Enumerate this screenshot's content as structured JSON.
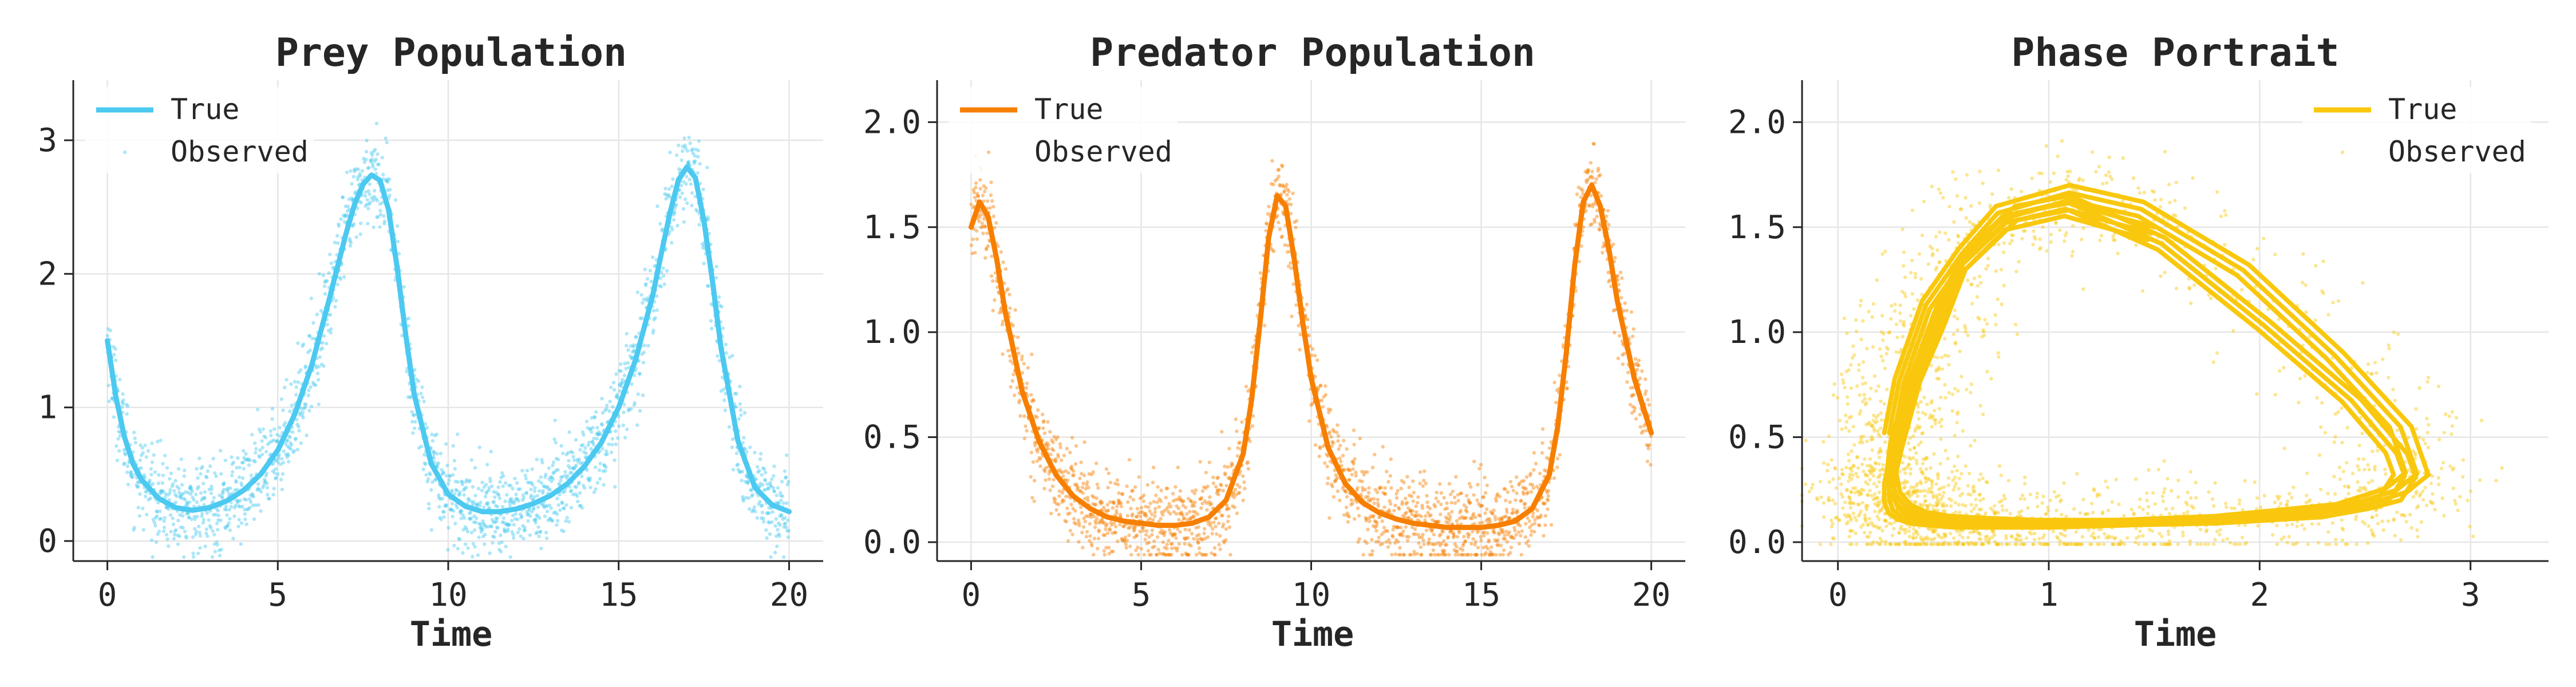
{
  "chart_data": [
    {
      "type": "line",
      "panel": "prey",
      "title": "Prey Population",
      "xlabel": "Time",
      "ylabel": "",
      "xlim": [
        -1,
        21
      ],
      "ylim": [
        -0.15,
        3.45
      ],
      "xticks": [
        0,
        5,
        10,
        15,
        20
      ],
      "yticks": [
        0,
        1,
        2,
        3
      ],
      "ytick_labels": [
        "0",
        "1",
        "2",
        "3"
      ],
      "grid": true,
      "legend": {
        "position": "top-left",
        "entries": [
          "True",
          "Observed"
        ]
      },
      "color": "#4cc9f0",
      "series": [
        {
          "name": "True",
          "x": [
            0,
            0.25,
            0.5,
            0.75,
            1,
            1.5,
            2,
            2.5,
            3,
            3.5,
            4,
            4.5,
            5,
            5.5,
            6,
            6.5,
            7,
            7.25,
            7.5,
            7.75,
            8,
            8.25,
            8.5,
            8.75,
            9,
            9.5,
            10,
            10.5,
            11,
            11.5,
            12,
            12.5,
            13,
            13.5,
            14,
            14.5,
            15,
            15.5,
            16,
            16.25,
            16.5,
            16.75,
            17,
            17.25,
            17.5,
            17.75,
            18,
            18.5,
            19,
            19.5,
            20
          ],
          "y": [
            1.5,
            1.08,
            0.78,
            0.58,
            0.46,
            0.32,
            0.25,
            0.23,
            0.25,
            0.3,
            0.38,
            0.5,
            0.68,
            0.95,
            1.32,
            1.8,
            2.3,
            2.52,
            2.67,
            2.74,
            2.7,
            2.48,
            2.05,
            1.55,
            1.1,
            0.58,
            0.35,
            0.26,
            0.22,
            0.22,
            0.24,
            0.28,
            0.34,
            0.43,
            0.56,
            0.74,
            1.0,
            1.36,
            1.84,
            2.15,
            2.45,
            2.7,
            2.8,
            2.72,
            2.4,
            1.95,
            1.45,
            0.75,
            0.4,
            0.27,
            0.22
          ]
        },
        {
          "name": "Observed",
          "style": "scatter",
          "noise_sd": 0.17,
          "n_points": 2200
        }
      ]
    },
    {
      "type": "line",
      "panel": "predator",
      "title": "Predator Population",
      "xlabel": "Time",
      "ylabel": "",
      "xlim": [
        -1,
        21
      ],
      "ylim": [
        -0.09,
        2.2
      ],
      "xticks": [
        0,
        5,
        10,
        15,
        20
      ],
      "yticks": [
        0,
        0.5,
        1,
        1.5,
        2
      ],
      "ytick_labels": [
        "0.0",
        "0.5",
        "1.0",
        "1.5",
        "2.0"
      ],
      "grid": true,
      "legend": {
        "position": "top-left",
        "entries": [
          "True",
          "Observed"
        ]
      },
      "color": "#f77f00",
      "series": [
        {
          "name": "True",
          "x": [
            0,
            0.25,
            0.5,
            0.75,
            1,
            1.5,
            2,
            2.5,
            3,
            3.5,
            4,
            4.5,
            5,
            5.5,
            6,
            6.5,
            7,
            7.5,
            8,
            8.25,
            8.5,
            8.75,
            9,
            9.25,
            9.5,
            9.75,
            10,
            10.5,
            11,
            11.5,
            12,
            12.5,
            13,
            13.5,
            14,
            14.5,
            15,
            15.5,
            16,
            16.5,
            17,
            17.25,
            17.5,
            17.75,
            18,
            18.25,
            18.5,
            18.75,
            19,
            19.5,
            20
          ],
          "y": [
            1.5,
            1.62,
            1.55,
            1.35,
            1.1,
            0.72,
            0.48,
            0.32,
            0.22,
            0.16,
            0.12,
            0.1,
            0.09,
            0.08,
            0.08,
            0.09,
            0.12,
            0.2,
            0.42,
            0.68,
            1.05,
            1.45,
            1.65,
            1.6,
            1.35,
            1.05,
            0.78,
            0.45,
            0.28,
            0.19,
            0.14,
            0.11,
            0.09,
            0.08,
            0.07,
            0.07,
            0.07,
            0.08,
            0.1,
            0.16,
            0.32,
            0.55,
            0.9,
            1.32,
            1.62,
            1.7,
            1.6,
            1.4,
            1.15,
            0.78,
            0.52
          ]
        },
        {
          "name": "Observed",
          "style": "scatter",
          "noise_sd": 0.11,
          "n_points": 2200
        }
      ]
    },
    {
      "type": "line",
      "panel": "phase",
      "title": "Phase Portrait",
      "xlabel": "",
      "ylabel": "",
      "xlim": [
        -0.17,
        3.37
      ],
      "ylim": [
        -0.09,
        2.2
      ],
      "xticks": [
        0,
        1,
        2,
        3
      ],
      "yticks": [
        0,
        0.5,
        1,
        1.5,
        2
      ],
      "ytick_labels": [
        "0.0",
        "0.5",
        "1.0",
        "1.5",
        "2.0"
      ],
      "grid": true,
      "legend": {
        "position": "top-right",
        "entries": [
          "True",
          "Observed"
        ]
      },
      "color": "#f9c80e",
      "series": [
        {
          "name": "True",
          "x_from": "prey",
          "y_from": "predator",
          "orbits": 3
        },
        {
          "name": "Observed",
          "style": "scatter",
          "x_noise_sd": 0.17,
          "y_noise_sd": 0.11,
          "n_points": 2200
        }
      ]
    }
  ]
}
